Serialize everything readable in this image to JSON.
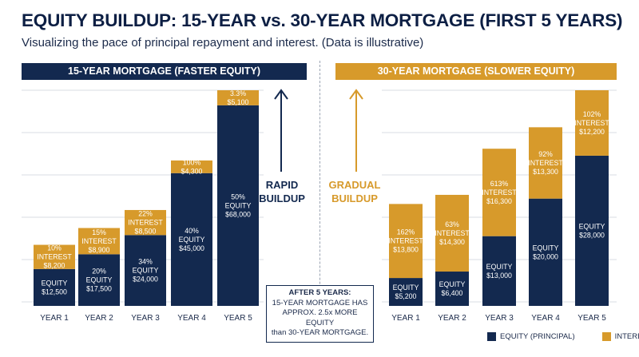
{
  "title": "EQUITY BUILDUP: 15-YEAR vs. 30-YEAR MORTGAGE (FIRST 5 YEARS)",
  "subtitle": "Visualizing the pace of principal repayment and interest. (Data is illustrative)",
  "colors": {
    "equity": "#13294f",
    "interest": "#d79a2b",
    "grid": "#d9dde3"
  },
  "side_labels": {
    "rapid": [
      "RAPID",
      "BUILDUP"
    ],
    "gradual": [
      "GRADUAL",
      "BUILDUP"
    ]
  },
  "callout": {
    "heading": "AFTER 5 YEARS:",
    "lines": [
      "15-YEAR MORTGAGE HAS",
      "APPROX. 2.5x MORE EQUITY",
      "than 30-YEAR MORTGAGE."
    ]
  },
  "legend": {
    "equity": "EQUITY (PRINCIPAL)",
    "interest": "INTEREST"
  },
  "chart_data": [
    {
      "type": "bar",
      "stacked": true,
      "title": "15-YEAR MORTGAGE (FASTER EQUITY)",
      "categories": [
        "YEAR 1",
        "YEAR 2",
        "YEAR 3",
        "YEAR 4",
        "YEAR 5"
      ],
      "series": [
        {
          "name": "EQUITY (PRINCIPAL)",
          "values": [
            12500,
            17500,
            24000,
            45000,
            68000
          ],
          "labels": [
            [
              "EQUITY",
              "$12,500"
            ],
            [
              "20%",
              "EQUITY",
              "$17,500"
            ],
            [
              "34%",
              "EQUITY",
              "$24,000"
            ],
            [
              "40%",
              "EQUITY",
              "$45,000"
            ],
            [
              "50%",
              "EQUITY",
              "$68,000"
            ]
          ]
        },
        {
          "name": "INTEREST",
          "values": [
            8200,
            8900,
            8500,
            4300,
            5100
          ],
          "labels": [
            [
              "10%",
              "INTEREST",
              "$8,200"
            ],
            [
              "15%",
              "INTEREST",
              "$8,900"
            ],
            [
              "22%",
              "INTEREST",
              "$8,500"
            ],
            [
              "100%",
              "$4,300"
            ],
            [
              "3.3%",
              "$5,100"
            ]
          ]
        }
      ],
      "grid": true
    },
    {
      "type": "bar",
      "stacked": true,
      "title": "30-YEAR MORTGAGE (SLOWER EQUITY)",
      "categories": [
        "YEAR 1",
        "YEAR 2",
        "YEAR 3",
        "YEAR 4",
        "YEAR 5"
      ],
      "series": [
        {
          "name": "EQUITY (PRINCIPAL)",
          "values": [
            5200,
            6400,
            13000,
            20000,
            28000
          ],
          "labels": [
            [
              "EQUITY",
              "$5,200"
            ],
            [
              "EQUITY",
              "$6,400"
            ],
            [
              "EQUITY",
              "$13,000"
            ],
            [
              "EQUITY",
              "$20,000"
            ],
            [
              "EQUITY",
              "$28,000"
            ]
          ]
        },
        {
          "name": "INTEREST",
          "values": [
            13800,
            14300,
            16300,
            13300,
            12200
          ],
          "labels": [
            [
              "162%",
              "INTEREST",
              "$13,800"
            ],
            [
              "63%",
              "INTEREST",
              "$14,300"
            ],
            [
              "613%",
              "INTEREST",
              "$16,300"
            ],
            [
              "92%",
              "INTEREST",
              "$13,300"
            ],
            [
              "102%",
              "INTEREST",
              "$12,200"
            ]
          ]
        }
      ],
      "grid": true
    }
  ]
}
